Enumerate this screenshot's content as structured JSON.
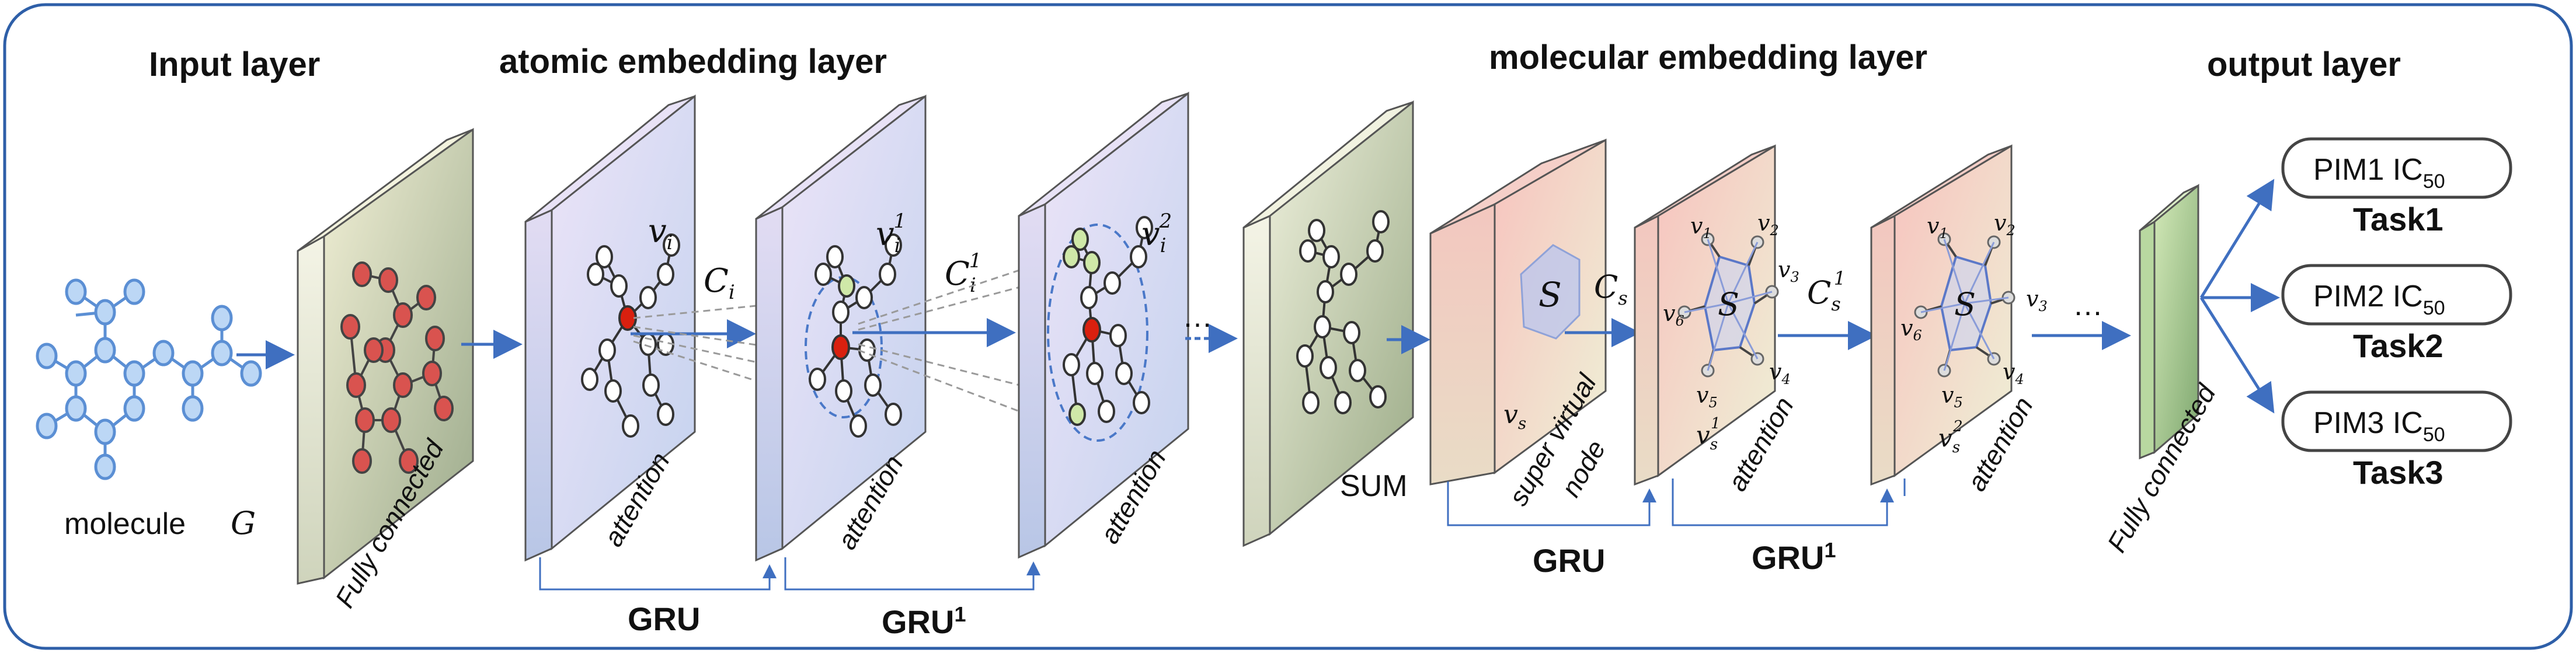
{
  "headings": {
    "input": "Input layer",
    "atomic": "atomic embedding layer",
    "molecular": "molecular embedding layer",
    "output": "output layer"
  },
  "labels": {
    "molecule": "molecule",
    "molecule_symbol": "G",
    "fully_connected_1": "Fully connected",
    "fully_connected_2": "Fully connected",
    "attention": "attention",
    "sum": "SUM",
    "super_virtual_node_1": "super virtual",
    "super_virtual_node_2": "node",
    "gru": "GRU",
    "gru_sup": "1",
    "dots": "…"
  },
  "math": {
    "v": "v",
    "i": "i",
    "C": "C",
    "s": "s",
    "S": "S",
    "sup1": "1",
    "sup2": "2",
    "n1": "1",
    "n2": "2",
    "n3": "3",
    "n4": "4",
    "n5": "5",
    "n6": "6"
  },
  "tasks": [
    {
      "name": "PIM1 IC",
      "sub": "50",
      "task": "Task1"
    },
    {
      "name": "PIM2 IC",
      "sub": "50",
      "task": "Task2"
    },
    {
      "name": "PIM3 IC",
      "sub": "50",
      "task": "Task3"
    }
  ],
  "colors": {
    "frame": "#2e5fa8",
    "arrow": "#3f6fc0",
    "atom_red": "#d9534f",
    "atom_blue_fill": "#bcd7f5",
    "atom_blue_stroke": "#5b8fd4",
    "atom_green": "#cfe8a8"
  }
}
